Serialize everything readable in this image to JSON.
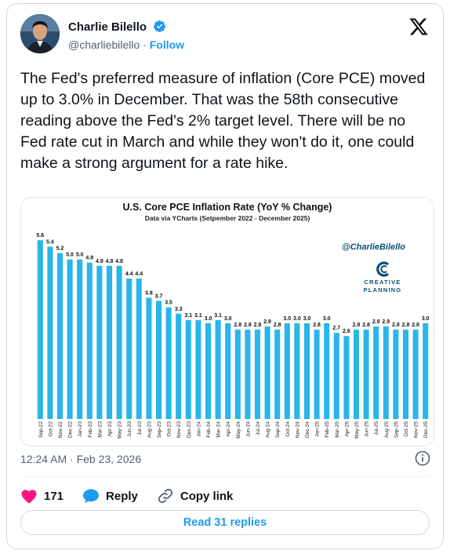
{
  "author": {
    "name": "Charlie Bilello",
    "handle": "@charliebilello",
    "separator": "·",
    "follow_label": "Follow"
  },
  "tweet": {
    "text": "The Fed's preferred measure of inflation (Core PCE) moved up to 3.0% in December. That was the 58th consecutive reading above the Fed's 2% target level. There will be no Fed rate cut in March and while they won't do it, one could make a strong argument for a rate hike."
  },
  "meta": {
    "timestamp": "12:24 AM · Feb 23, 2026"
  },
  "actions": {
    "likes": "171",
    "reply_label": "Reply",
    "copy_label": "Copy link",
    "read_replies_label": "Read 31 replies"
  },
  "colors": {
    "accent": "#1d9bf0",
    "like": "#f91880",
    "bar": "#29b6e8",
    "brand": "#0b4f73"
  },
  "icons": [
    "verified-badge-icon",
    "x-logo-icon",
    "info-icon",
    "heart-icon",
    "reply-bubble-icon",
    "link-icon",
    "creative-planning-logo-icon"
  ],
  "chart_data": {
    "type": "bar",
    "title": "U.S. Core PCE Inflation Rate (YoY % Change)",
    "subtitle": "Data via YCharts (Setpember 2022 - December 2025)",
    "watermark": "@CharlieBilello",
    "brand_lines": [
      "CREATIVE",
      "PLANNING"
    ],
    "grid": false,
    "legend": "none",
    "ylim": [
      0,
      5.9
    ],
    "categories": [
      "Sep-22",
      "Oct-22",
      "Nov-22",
      "Dec-22",
      "Jan-23",
      "Feb-23",
      "Mar-23",
      "Apr-23",
      "May-23",
      "Jun-23",
      "Jul-23",
      "Aug-23",
      "Sep-23",
      "Oct-23",
      "Nov-23",
      "Dec-23",
      "Jan-24",
      "Feb-24",
      "Mar-24",
      "Apr-24",
      "May-24",
      "Jun-24",
      "Jul-24",
      "Aug-24",
      "Sep-24",
      "Oct-24",
      "Nov-24",
      "Dec-24",
      "Jan-25",
      "Feb-25",
      "Mar-25",
      "Apr-25",
      "May-25",
      "Jun-25",
      "Jul-25",
      "Aug-25",
      "Sep-25",
      "Oct-25",
      "Nov-25",
      "Dec-25"
    ],
    "values": [
      5.6,
      5.4,
      5.2,
      5.0,
      5.0,
      4.9,
      4.8,
      4.8,
      4.8,
      4.4,
      4.4,
      3.8,
      3.7,
      3.5,
      3.3,
      3.1,
      3.1,
      3.0,
      3.1,
      3.0,
      2.8,
      2.8,
      2.8,
      2.9,
      2.8,
      3.0,
      3.0,
      3.0,
      2.8,
      3.0,
      2.7,
      2.6,
      2.8,
      2.8,
      2.9,
      2.9,
      2.8,
      2.8,
      2.8,
      3.0
    ],
    "labels": [
      "5.6",
      "5.4",
      "5.2",
      "5.0",
      "5.0",
      "4.9",
      "4.8",
      "4.8",
      "4.8",
      "4.4",
      "4.4",
      "3.8",
      "3.7",
      "3.5",
      "3.3",
      "3.1",
      "3.1",
      "3.0",
      "3.1",
      "3.0",
      "2.8",
      "2.8",
      "2.8",
      "2.9",
      "2.8",
      "3.0",
      "3.0",
      "3.0",
      "2.8",
      "3.0",
      "2.7",
      "2.6",
      "2.8",
      "2.8",
      "2.9",
      "2.9",
      "2.8",
      "2.8",
      "2.8",
      "3.0"
    ]
  }
}
